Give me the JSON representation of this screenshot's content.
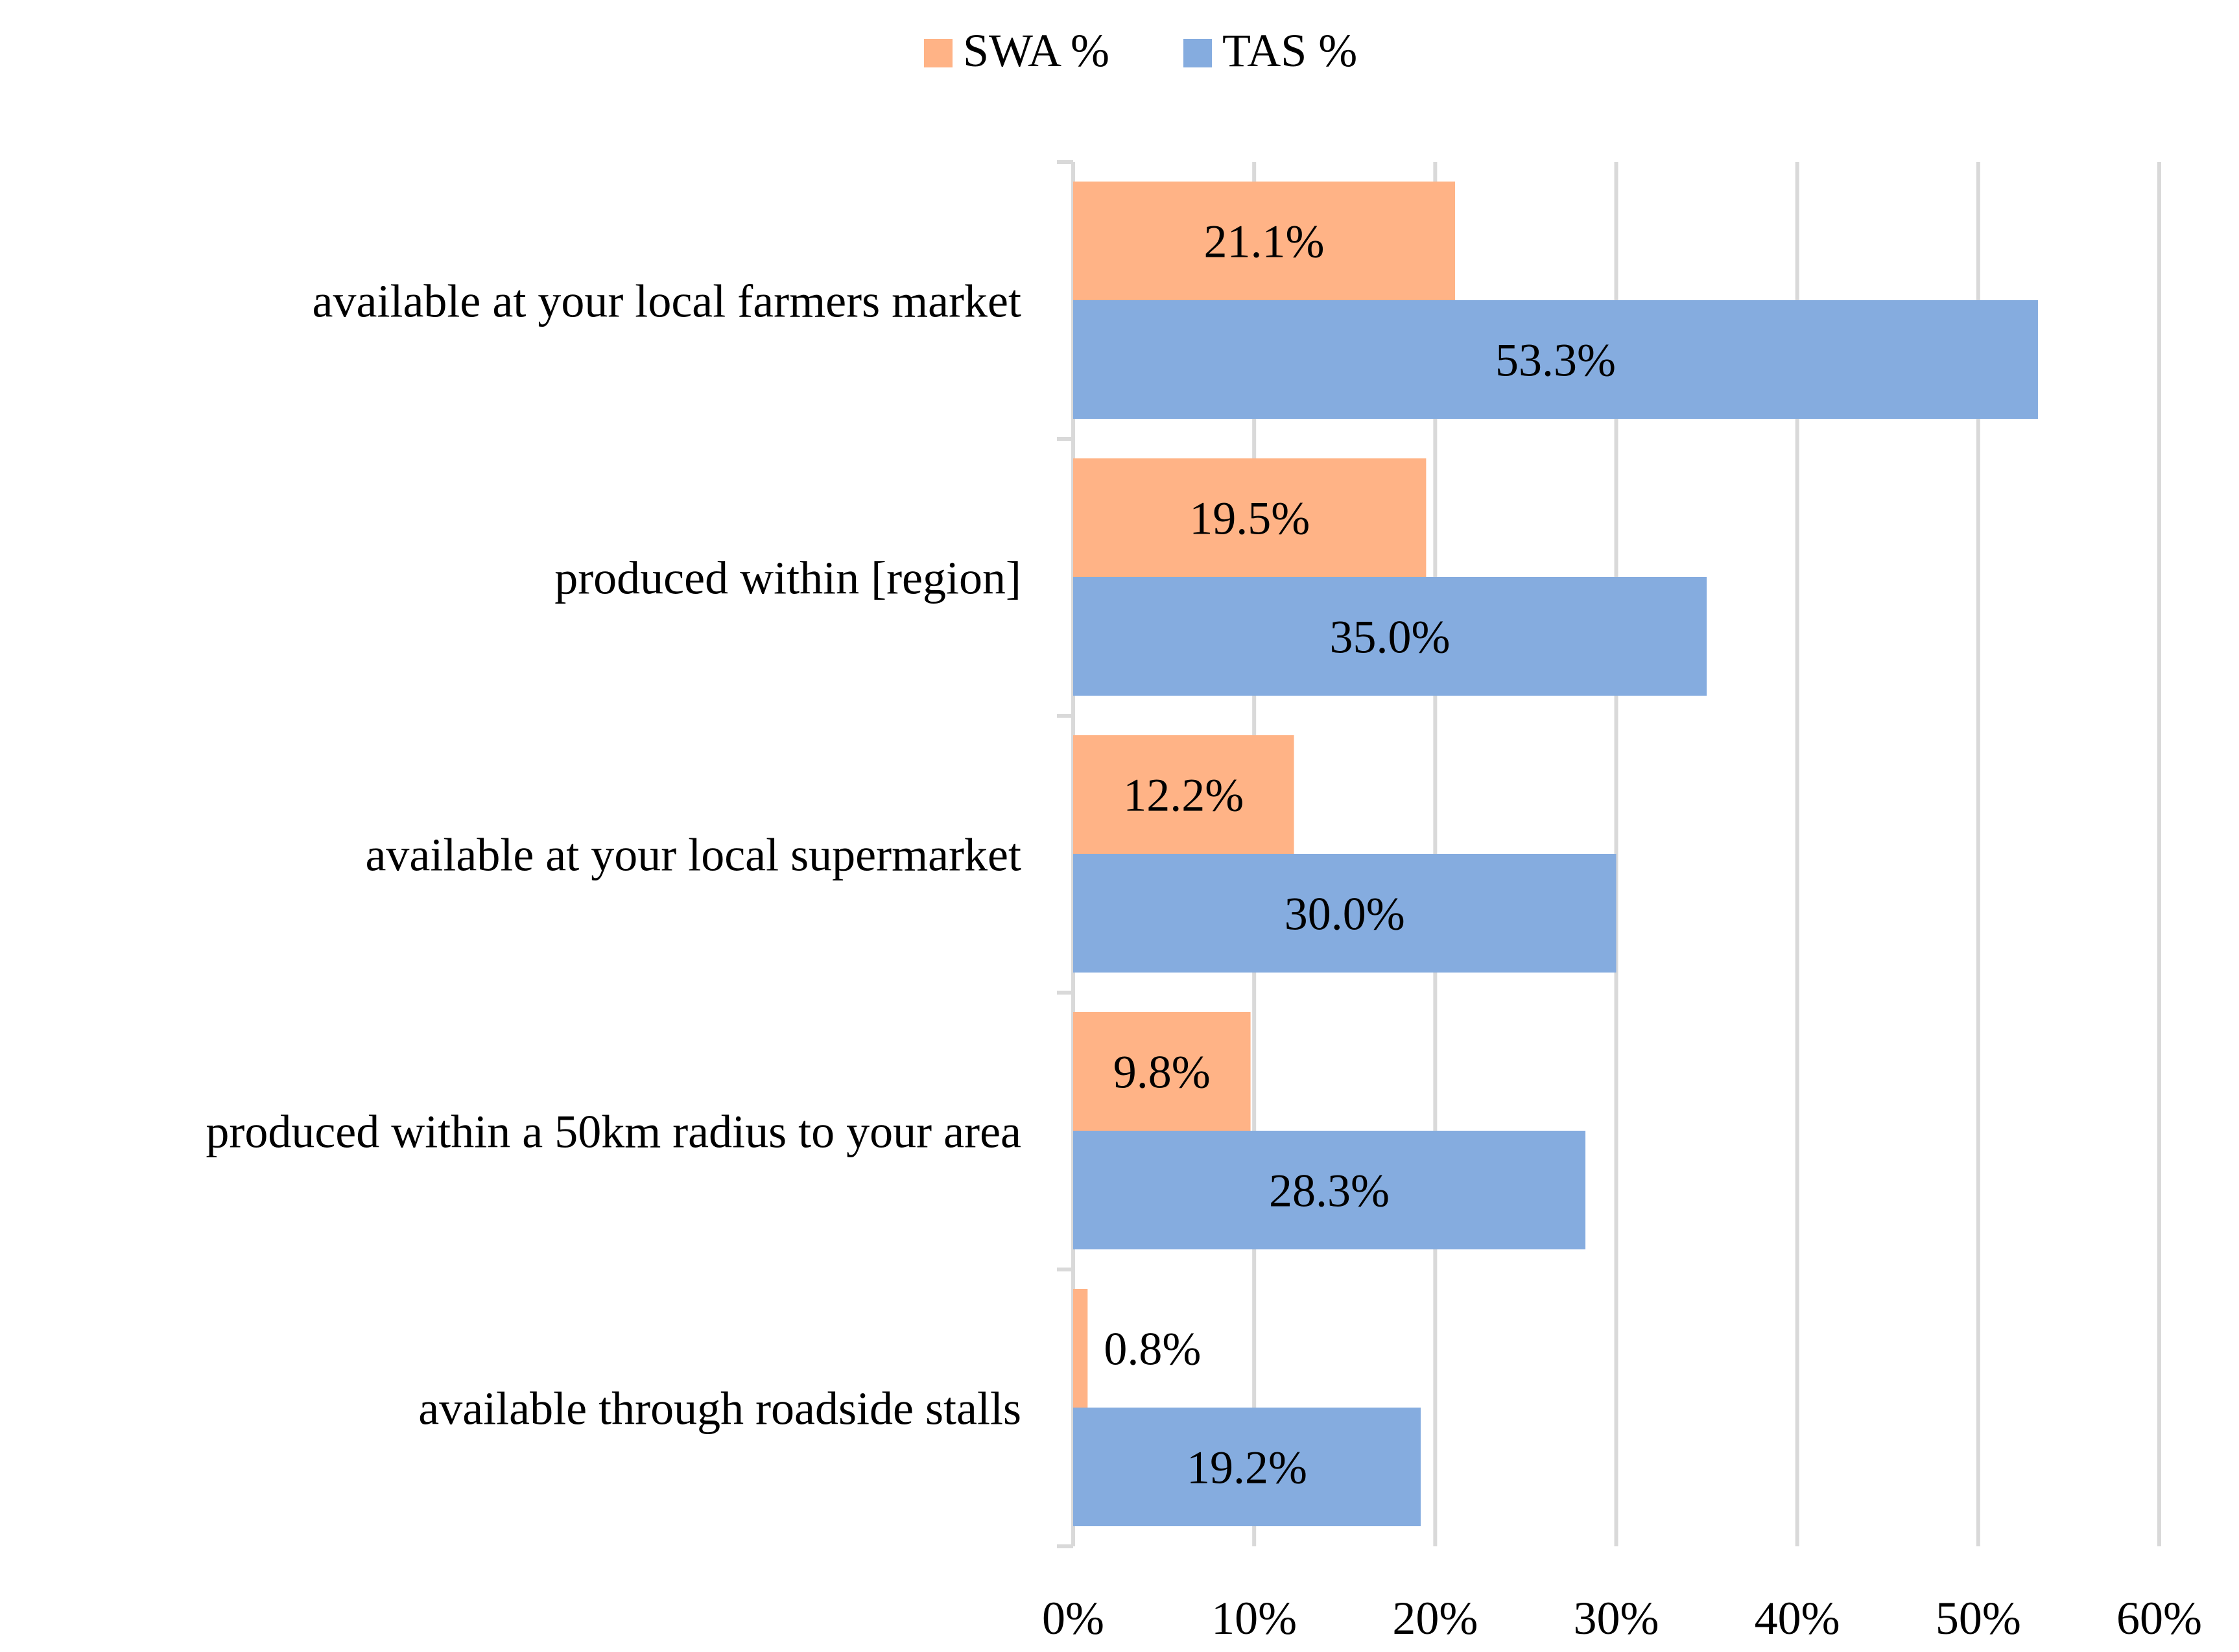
{
  "chart_data": {
    "type": "bar",
    "orientation": "horizontal",
    "title": "",
    "xlabel": "",
    "ylabel": "",
    "xlim": [
      0,
      60
    ],
    "ticks": [
      0,
      10,
      20,
      30,
      40,
      50,
      60
    ],
    "tick_labels": [
      "0%",
      "10%",
      "20%",
      "30%",
      "40%",
      "50%",
      "60%"
    ],
    "grid": true,
    "legend_position": "top-center",
    "categories": [
      "available at your local farmers market",
      "produced within [region]",
      "available at your local supermarket",
      "produced within a 50km radius to your area",
      "available through roadside stalls"
    ],
    "series": [
      {
        "name": "SWA %",
        "color": "#FFB386",
        "values": [
          21.1,
          19.5,
          12.2,
          9.8,
          0.8
        ],
        "labels": [
          "21.1%",
          "19.5%",
          "12.2%",
          "9.8%",
          "0.8%"
        ]
      },
      {
        "name": "TAS %",
        "color": "#85ACDF",
        "values": [
          53.3,
          35.0,
          30.0,
          28.3,
          19.2
        ],
        "labels": [
          "53.3%",
          "35.0%",
          "30.0%",
          "28.3%",
          "19.2%"
        ]
      }
    ]
  }
}
